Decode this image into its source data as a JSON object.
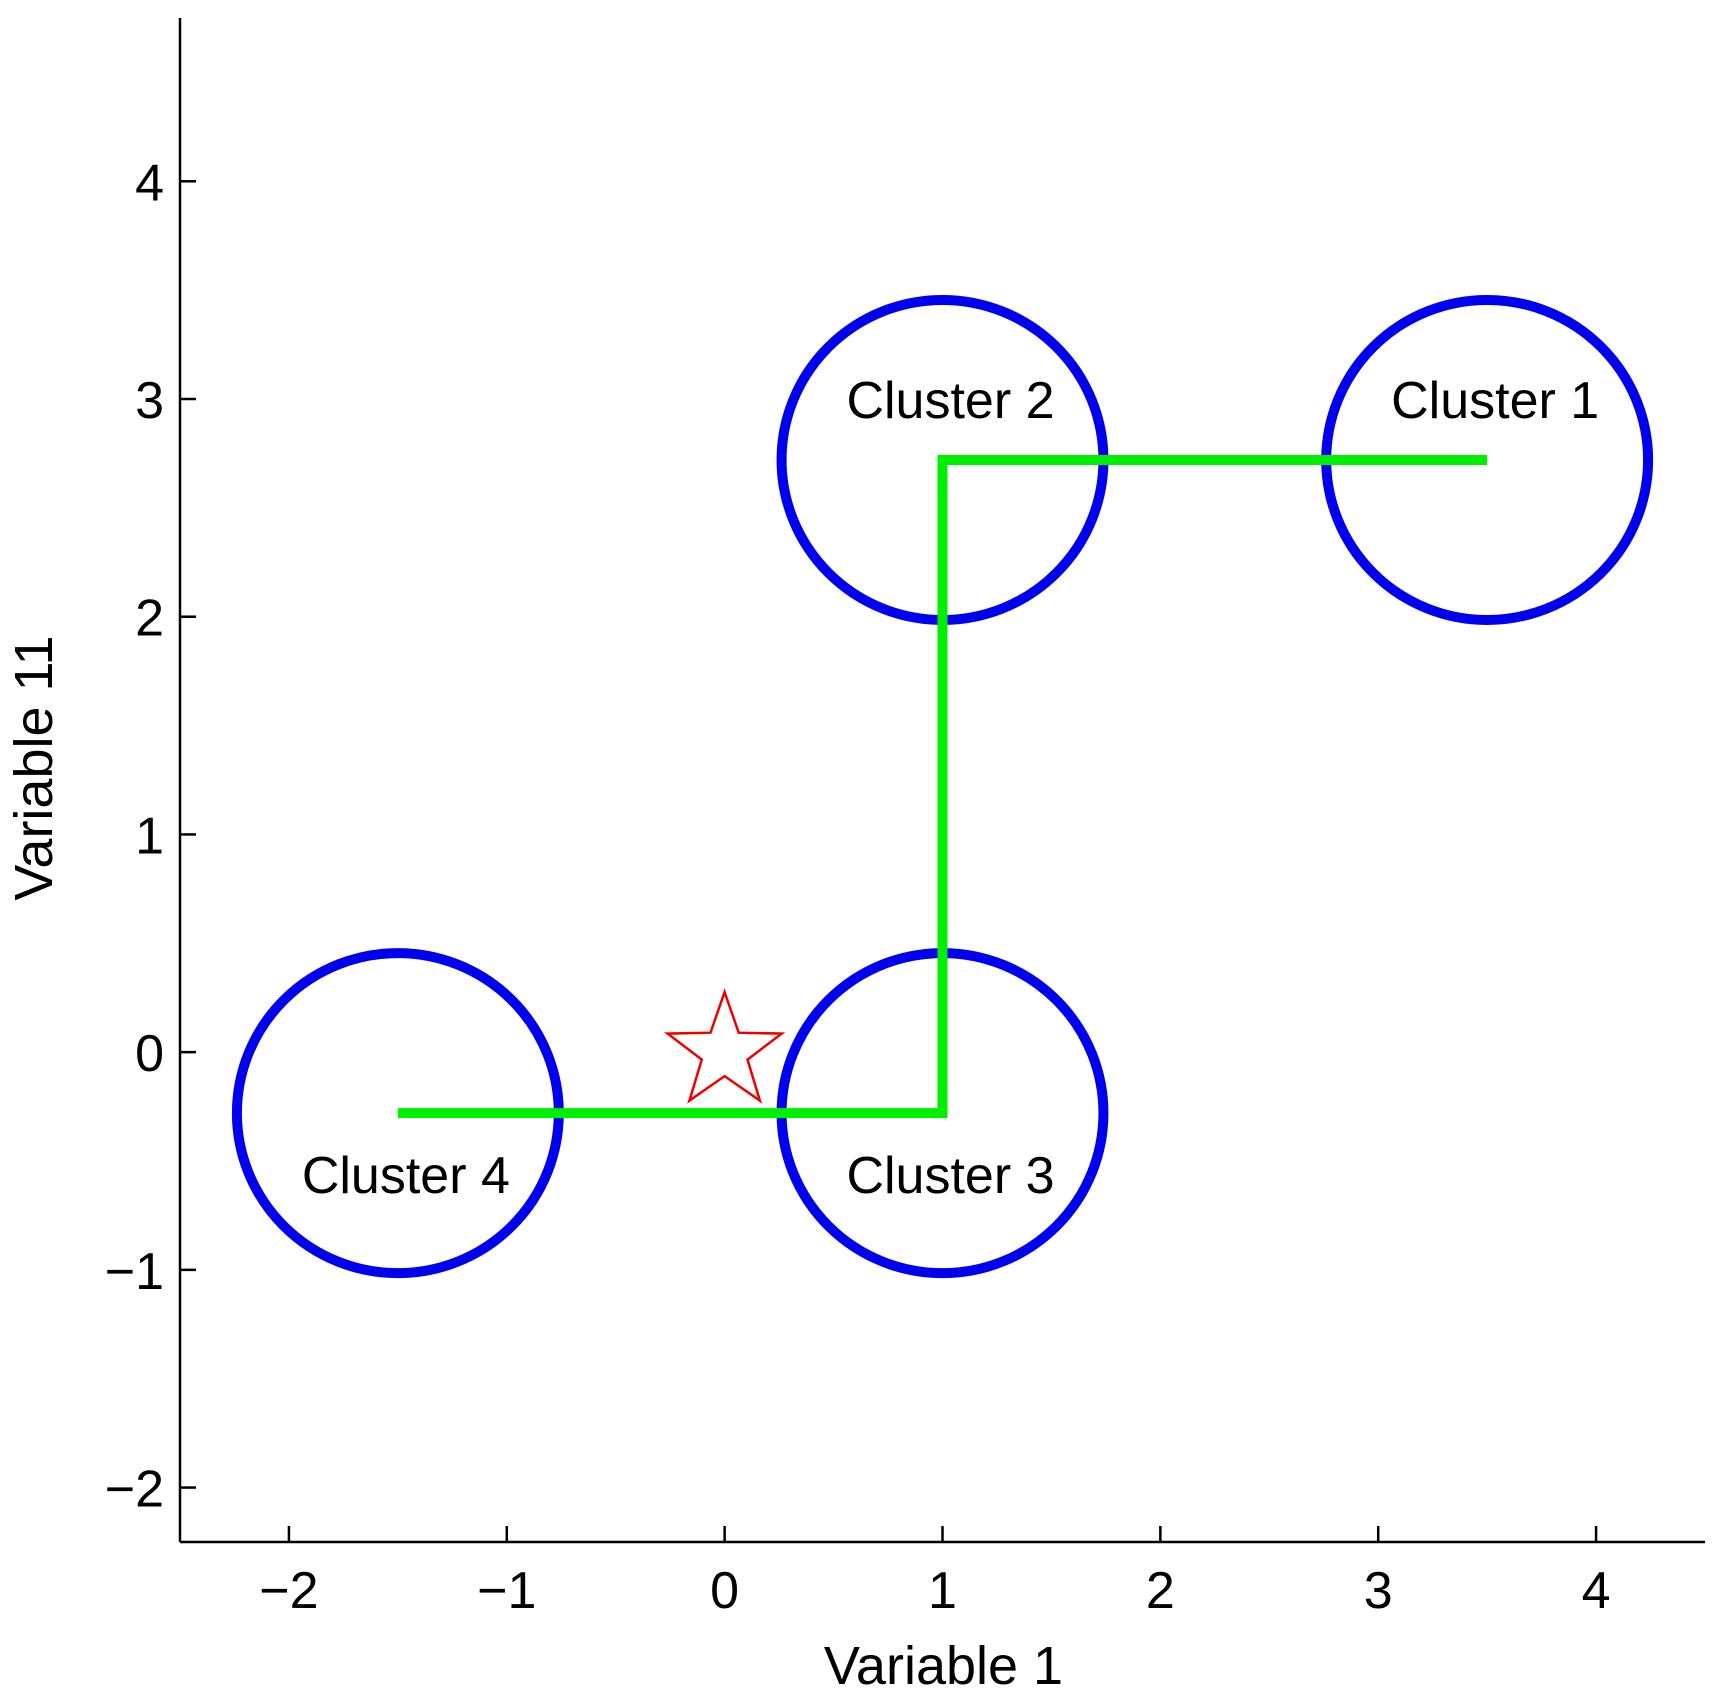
{
  "chart_data": {
    "type": "scatter",
    "title": "",
    "xlabel": "Variable 1",
    "ylabel": "Variable 11",
    "xlim": [
      -2.5,
      4.5
    ],
    "ylim": [
      -2.25,
      4.75
    ],
    "xticks": [
      -2,
      -1,
      0,
      1,
      2,
      3,
      4
    ],
    "yticks": [
      -2,
      -1,
      0,
      1,
      2,
      3,
      4
    ],
    "xtick_labels": [
      "−2",
      "−1",
      "0",
      "1",
      "2",
      "3",
      "4"
    ],
    "ytick_labels": [
      "−2",
      "−1",
      "0",
      "1",
      "2",
      "3",
      "4"
    ],
    "grid": false,
    "colors": {
      "cluster_circle": "#0000ee",
      "path_line": "#00ee00",
      "star": "#ee0000",
      "axis": "#000000"
    },
    "clusters": [
      {
        "label": "Cluster 1",
        "center": [
          3.5,
          2.72
        ],
        "radius": 0.75
      },
      {
        "label": "Cluster 2",
        "center": [
          1.0,
          2.72
        ],
        "radius": 0.75
      },
      {
        "label": "Cluster 3",
        "center": [
          1.0,
          -0.28
        ],
        "radius": 0.75
      },
      {
        "label": "Cluster 4",
        "center": [
          -1.5,
          -0.28
        ],
        "radius": 0.75
      }
    ],
    "path": {
      "points": [
        [
          -1.5,
          -0.28
        ],
        [
          1.0,
          -0.28
        ],
        [
          1.0,
          2.72
        ],
        [
          3.5,
          2.72
        ]
      ]
    },
    "marker": {
      "shape": "star",
      "position": [
        0.0,
        0.0
      ]
    }
  }
}
